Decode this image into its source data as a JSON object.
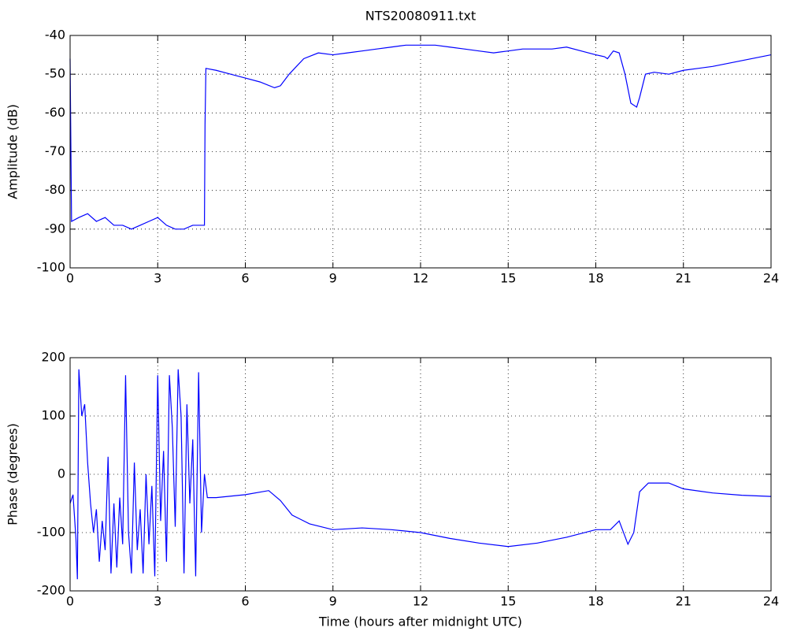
{
  "chart_data": [
    {
      "type": "line",
      "title": "NTS20080911.txt",
      "ylabel": "Amplitude (dB)",
      "x": [
        0,
        0.05,
        0.3,
        0.6,
        0.9,
        1.2,
        1.5,
        1.8,
        2.1,
        2.4,
        2.7,
        3.0,
        3.3,
        3.6,
        3.9,
        4.2,
        4.5,
        4.6,
        4.62,
        4.65,
        5,
        5.5,
        6,
        6.5,
        7,
        7.2,
        7.5,
        8,
        8.5,
        9,
        9.5,
        10,
        10.5,
        11,
        11.5,
        12,
        12.5,
        13,
        13.5,
        14,
        14.5,
        15,
        15.5,
        16,
        16.5,
        17,
        17.5,
        18,
        18.3,
        18.4,
        18.6,
        18.8,
        19,
        19.2,
        19.4,
        19.5,
        19.7,
        20,
        20.5,
        21,
        22,
        23,
        24
      ],
      "series": [
        {
          "color": "#0000ff",
          "values": [
            -46,
            -88,
            -87,
            -86,
            -88,
            -87,
            -89,
            -89,
            -90,
            -89,
            -88,
            -87,
            -89,
            -90,
            -90,
            -89,
            -89,
            -89,
            -63,
            -48.5,
            -49,
            -50,
            -51,
            -52,
            -53.5,
            -53,
            -50,
            -46,
            -44.5,
            -45,
            -44.5,
            -44,
            -43.5,
            -43,
            -42.5,
            -42.5,
            -42.5,
            -43,
            -43.5,
            -44,
            -44.5,
            -44,
            -43.5,
            -43.5,
            -43.5,
            -43,
            -44,
            -45,
            -45.5,
            -46,
            -44,
            -44.5,
            -50,
            -57.5,
            -58.5,
            -56,
            -50,
            -49.5,
            -50,
            -49,
            -48,
            -46.5,
            -45
          ]
        }
      ],
      "xlim": [
        0,
        24
      ],
      "ylim": [
        -100,
        -40
      ],
      "xticks": [
        0,
        3,
        6,
        9,
        12,
        15,
        18,
        21,
        24
      ],
      "yticks": [
        -100,
        -90,
        -80,
        -70,
        -60,
        -50,
        -40
      ],
      "grid": true
    },
    {
      "type": "line",
      "ylabel": "Phase (degrees)",
      "xlabel": "Time (hours after midnight UTC)",
      "x": [
        0,
        0.1,
        0.2,
        0.25,
        0.3,
        0.4,
        0.5,
        0.6,
        0.7,
        0.8,
        0.9,
        1.0,
        1.1,
        1.2,
        1.3,
        1.4,
        1.5,
        1.6,
        1.7,
        1.8,
        1.9,
        2.0,
        2.1,
        2.2,
        2.3,
        2.4,
        2.5,
        2.6,
        2.7,
        2.8,
        2.9,
        3.0,
        3.1,
        3.2,
        3.3,
        3.4,
        3.5,
        3.6,
        3.7,
        3.8,
        3.9,
        4.0,
        4.1,
        4.2,
        4.3,
        4.4,
        4.5,
        4.6,
        4.7,
        5,
        6,
        6.8,
        7.2,
        7.6,
        8.2,
        9,
        10,
        11,
        12,
        13,
        14,
        15,
        16,
        17,
        18,
        18.5,
        18.8,
        19.1,
        19.3,
        19.5,
        19.8,
        20.5,
        21,
        22,
        23,
        24
      ],
      "series": [
        {
          "color": "#0000ff",
          "values": [
            -50,
            -35,
            -110,
            -180,
            180,
            100,
            120,
            20,
            -50,
            -100,
            -60,
            -150,
            -80,
            -130,
            30,
            -170,
            -50,
            -160,
            -40,
            -120,
            170,
            -100,
            -170,
            20,
            -130,
            -60,
            -170,
            0,
            -120,
            -20,
            -175,
            170,
            -80,
            40,
            -150,
            170,
            80,
            -90,
            180,
            100,
            -170,
            120,
            -50,
            60,
            -175,
            175,
            -100,
            0,
            -40,
            -40,
            -35,
            -28,
            -45,
            -70,
            -85,
            -95,
            -92,
            -95,
            -100,
            -110,
            -118,
            -124,
            -118,
            -108,
            -95,
            -95,
            -80,
            -120,
            -100,
            -30,
            -15,
            -15,
            -25,
            -32,
            -36,
            -38
          ]
        }
      ],
      "xlim": [
        0,
        24
      ],
      "ylim": [
        -200,
        200
      ],
      "xticks": [
        0,
        3,
        6,
        9,
        12,
        15,
        18,
        21,
        24
      ],
      "yticks": [
        -200,
        -100,
        0,
        100,
        200
      ],
      "grid": true
    }
  ]
}
